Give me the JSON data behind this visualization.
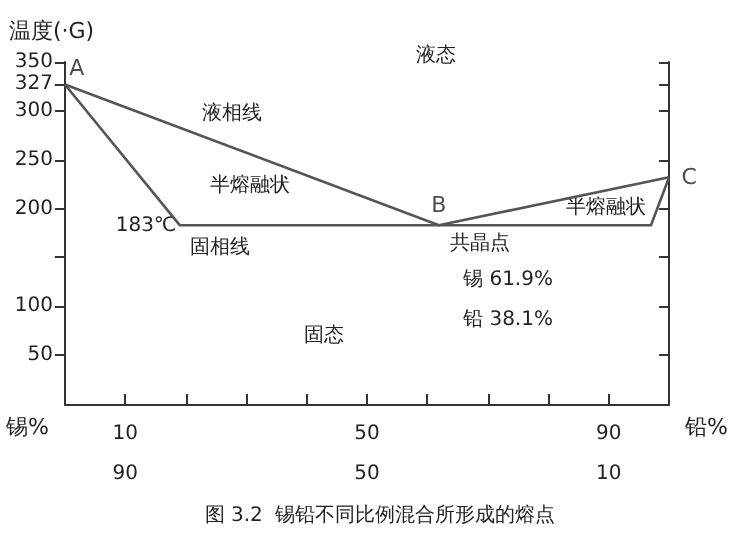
{
  "chart_data": {
    "type": "line",
    "ylabel": "温度(·G)",
    "xlabel": "锡%",
    "x2label": "铅%",
    "xlim": [
      0,
      100
    ],
    "xticks": [
      {
        "value": 0,
        "label": null
      },
      {
        "value": 10,
        "label": "10"
      },
      {
        "value": 20,
        "label": null
      },
      {
        "value": 30,
        "label": null
      },
      {
        "value": 40,
        "label": null
      },
      {
        "value": 50,
        "label": "50"
      },
      {
        "value": 60,
        "label": null
      },
      {
        "value": 70,
        "label": null
      },
      {
        "value": 80,
        "label": null
      },
      {
        "value": 90,
        "label": "90"
      },
      {
        "value": 100,
        "label": null
      }
    ],
    "x2lim": [
      100,
      0
    ],
    "x2ticks": [
      90,
      50,
      10
    ],
    "ylim": [
      0,
      350
    ],
    "yticks": [
      50,
      100,
      {
        "value": 150,
        "label": null
      },
      200,
      250,
      300,
      327,
      350
    ],
    "series": [
      {
        "color": "#555555",
        "x": [
          0,
          61.9,
          100
        ],
        "values": [
          327,
          183,
          232
        ]
      },
      {
        "color": "#555555",
        "x": [
          0,
          19,
          97,
          100
        ],
        "values": [
          327,
          183,
          183,
          232
        ]
      }
    ],
    "annotations": [
      {
        "text": "A",
        "x": 0,
        "y": 327
      },
      {
        "text": "B",
        "x": 61.9,
        "y": 183
      },
      {
        "text": "C",
        "x": 100,
        "y": 232
      },
      "液态",
      "液相线",
      "半熔融状",
      "183℃",
      "固相线",
      "共晶点",
      "锡 61.9%",
      "铅 38.1%",
      "固态",
      "半熔融状",
      "图 3.2  锡铅不同比例混合所形成的熔点"
    ],
    "grid": false,
    "marker": "none",
    "line_style": "solid"
  }
}
